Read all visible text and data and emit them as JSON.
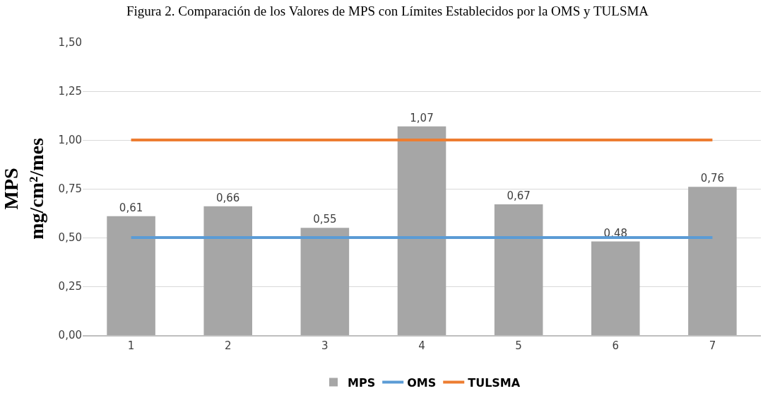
{
  "chart_data": {
    "type": "bar",
    "title": "Figura 2. Comparación de los Valores de MPS con Límites Establecidos por la OMS y TULSMA",
    "ylabel": "MPS\nmg/cm²/mes",
    "categories": [
      "1",
      "2",
      "3",
      "4",
      "5",
      "6",
      "7"
    ],
    "series": [
      {
        "name": "MPS",
        "color": "#a6a6a6",
        "values": [
          0.61,
          0.66,
          0.55,
          1.07,
          0.67,
          0.48,
          0.76
        ],
        "value_labels": [
          "0,61",
          "0,66",
          "0,55",
          "1,07",
          "0,67",
          "0,48",
          "0,76"
        ]
      },
      {
        "name": "OMS",
        "type": "line",
        "color": "#5b9bd5",
        "values": [
          0.5,
          0.5,
          0.5,
          0.5,
          0.5,
          0.5,
          0.5
        ]
      },
      {
        "name": "TULSMA",
        "type": "line",
        "color": "#ed7d31",
        "values": [
          1.0,
          1.0,
          1.0,
          1.0,
          1.0,
          1.0,
          1.0
        ]
      }
    ],
    "ylim": [
      0,
      1.5
    ],
    "yticks": [
      {
        "value": 0,
        "label": "0,00"
      },
      {
        "value": 0.25,
        "label": "0,25"
      },
      {
        "value": 0.5,
        "label": "0,50"
      },
      {
        "value": 0.75,
        "label": "0,75"
      },
      {
        "value": 1.0,
        "label": "1,00"
      },
      {
        "value": 1.25,
        "label": "1,25"
      },
      {
        "value": 1.5,
        "label": "1,50"
      }
    ],
    "grid": "y",
    "legend": "bottom",
    "marker": "none",
    "line_style": "solid"
  }
}
